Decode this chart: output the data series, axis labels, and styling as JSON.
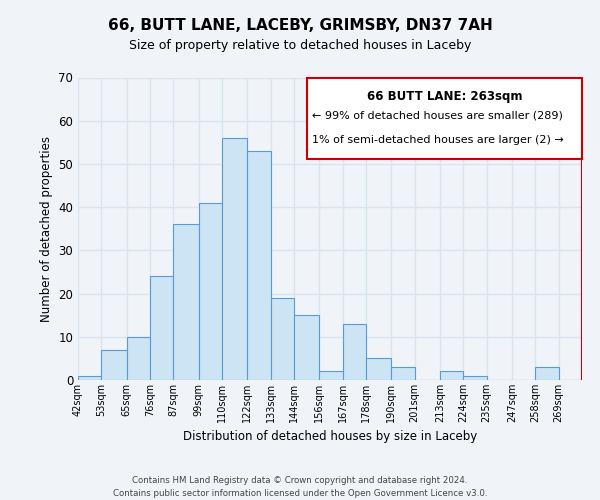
{
  "title": "66, BUTT LANE, LACEBY, GRIMSBY, DN37 7AH",
  "subtitle": "Size of property relative to detached houses in Laceby",
  "xlabel": "Distribution of detached houses by size in Laceby",
  "ylabel": "Number of detached properties",
  "bin_labels": [
    "42sqm",
    "53sqm",
    "65sqm",
    "76sqm",
    "87sqm",
    "99sqm",
    "110sqm",
    "122sqm",
    "133sqm",
    "144sqm",
    "156sqm",
    "167sqm",
    "178sqm",
    "190sqm",
    "201sqm",
    "213sqm",
    "224sqm",
    "235sqm",
    "247sqm",
    "258sqm",
    "269sqm"
  ],
  "bar_values": [
    1,
    7,
    10,
    24,
    36,
    41,
    56,
    53,
    19,
    15,
    2,
    13,
    5,
    3,
    0,
    2,
    1,
    0,
    0,
    3,
    0
  ],
  "bar_color": "#cce4f4",
  "bar_edge_color": "#5b9bd5",
  "ylim": [
    0,
    70
  ],
  "yticks": [
    0,
    10,
    20,
    30,
    40,
    50,
    60,
    70
  ],
  "property_line_label": "66 BUTT LANE: 263sqm",
  "legend_line1": "← 99% of detached houses are smaller (289)",
  "legend_line2": "1% of semi-detached houses are larger (2) →",
  "footer1": "Contains HM Land Registry data © Crown copyright and database right 2024.",
  "footer2": "Contains public sector information licensed under the Open Government Licence v3.0.",
  "background_color": "#f0f4f8",
  "grid_color": "#d8e4f0",
  "property_line_color": "#cc0000",
  "bin_edges": [
    42,
    53,
    65,
    76,
    87,
    99,
    110,
    122,
    133,
    144,
    156,
    167,
    178,
    190,
    201,
    213,
    224,
    235,
    247,
    258,
    269,
    280
  ]
}
